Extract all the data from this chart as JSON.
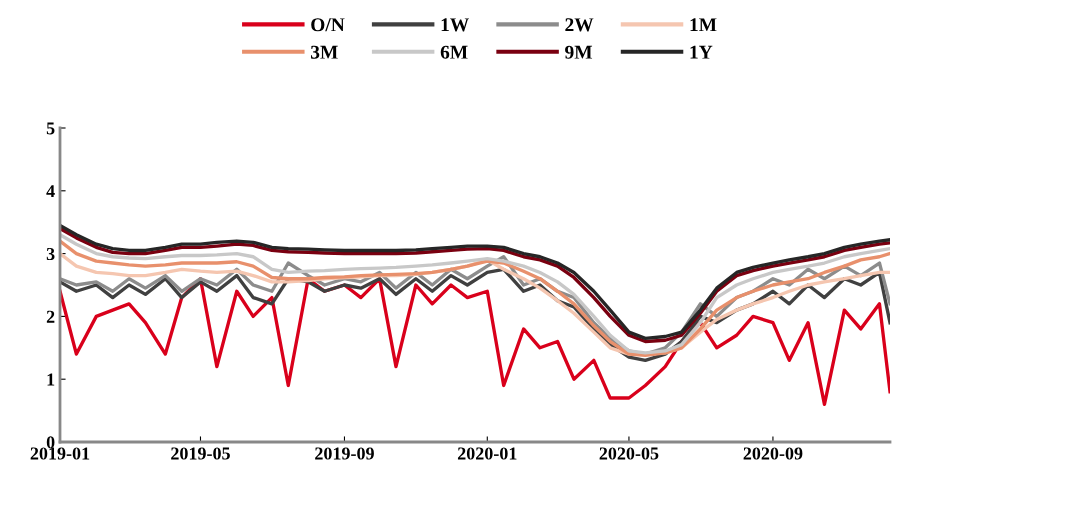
{
  "chart_data": {
    "type": "line",
    "legend": "top",
    "grid": false,
    "marker": "none",
    "line_style": "solid",
    "x": [
      "2019-01-01",
      "2019-01-15",
      "2019-02-01",
      "2019-02-15",
      "2019-03-01",
      "2019-03-15",
      "2019-04-01",
      "2019-04-15",
      "2019-05-01",
      "2019-05-15",
      "2019-06-01",
      "2019-06-15",
      "2019-07-01",
      "2019-07-15",
      "2019-08-01",
      "2019-08-15",
      "2019-09-01",
      "2019-09-15",
      "2019-10-01",
      "2019-10-15",
      "2019-11-01",
      "2019-11-15",
      "2019-12-01",
      "2019-12-15",
      "2020-01-01",
      "2020-01-15",
      "2020-02-01",
      "2020-02-15",
      "2020-03-01",
      "2020-03-15",
      "2020-04-01",
      "2020-04-15",
      "2020-05-01",
      "2020-05-15",
      "2020-06-01",
      "2020-06-15",
      "2020-07-01",
      "2020-07-15",
      "2020-08-01",
      "2020-08-15",
      "2020-09-01",
      "2020-09-15",
      "2020-10-01",
      "2020-10-15",
      "2020-11-01",
      "2020-11-15",
      "2020-12-01",
      "2020-12-10"
    ],
    "xlim": [
      "2019-01-01",
      "2020-12-10"
    ],
    "xticks": [
      {
        "value": "2019-01-01",
        "label": "2019-01"
      },
      {
        "value": "2019-05-01",
        "label": "2019-05"
      },
      {
        "value": "2019-09-01",
        "label": "2019-09"
      },
      {
        "value": "2020-01-01",
        "label": "2020-01"
      },
      {
        "value": "2020-05-01",
        "label": "2020-05"
      },
      {
        "value": "2020-09-01",
        "label": "2020-09"
      }
    ],
    "ylim": [
      0,
      5
    ],
    "yticks": [
      0,
      1,
      2,
      3,
      4,
      5
    ],
    "series": [
      {
        "name": "O/N",
        "color": "#d9001b",
        "values": [
          2.4,
          1.4,
          2.0,
          2.1,
          2.2,
          1.9,
          1.4,
          2.3,
          2.6,
          1.2,
          2.4,
          2.0,
          2.3,
          0.9,
          2.6,
          2.4,
          2.5,
          2.3,
          2.6,
          1.2,
          2.5,
          2.2,
          2.5,
          2.3,
          2.4,
          0.9,
          1.8,
          1.5,
          1.6,
          1.0,
          1.3,
          0.7,
          0.7,
          0.9,
          1.2,
          1.6,
          1.9,
          1.5,
          1.7,
          2.0,
          1.9,
          1.3,
          1.9,
          0.6,
          2.1,
          1.8,
          2.2,
          0.8
        ]
      },
      {
        "name": "1W",
        "color": "#404040",
        "values": [
          2.55,
          2.4,
          2.5,
          2.3,
          2.5,
          2.35,
          2.6,
          2.3,
          2.55,
          2.4,
          2.65,
          2.3,
          2.2,
          2.6,
          2.55,
          2.4,
          2.5,
          2.45,
          2.6,
          2.35,
          2.6,
          2.4,
          2.65,
          2.5,
          2.7,
          2.75,
          2.4,
          2.5,
          2.25,
          2.15,
          1.8,
          1.55,
          1.35,
          1.3,
          1.4,
          1.6,
          2.0,
          1.9,
          2.1,
          2.2,
          2.4,
          2.2,
          2.5,
          2.3,
          2.6,
          2.5,
          2.7,
          1.9
        ]
      },
      {
        "name": "2W",
        "color": "#8c8c8c",
        "values": [
          2.6,
          2.5,
          2.55,
          2.4,
          2.6,
          2.45,
          2.65,
          2.4,
          2.6,
          2.5,
          2.75,
          2.5,
          2.4,
          2.85,
          2.65,
          2.5,
          2.6,
          2.55,
          2.7,
          2.45,
          2.7,
          2.5,
          2.75,
          2.6,
          2.8,
          2.95,
          2.5,
          2.6,
          2.4,
          2.3,
          1.9,
          1.65,
          1.45,
          1.4,
          1.5,
          1.75,
          2.2,
          2.0,
          2.3,
          2.4,
          2.6,
          2.5,
          2.75,
          2.6,
          2.8,
          2.65,
          2.85,
          2.2
        ]
      },
      {
        "name": "1M",
        "color": "#f5c6b0",
        "values": [
          3.0,
          2.8,
          2.7,
          2.68,
          2.65,
          2.65,
          2.7,
          2.75,
          2.72,
          2.7,
          2.72,
          2.65,
          2.55,
          2.55,
          2.57,
          2.6,
          2.62,
          2.63,
          2.65,
          2.65,
          2.67,
          2.7,
          2.75,
          2.8,
          2.9,
          2.75,
          2.6,
          2.45,
          2.25,
          2.05,
          1.75,
          1.5,
          1.4,
          1.4,
          1.42,
          1.5,
          1.75,
          1.95,
          2.1,
          2.2,
          2.3,
          2.4,
          2.5,
          2.55,
          2.6,
          2.65,
          2.7,
          2.7
        ]
      },
      {
        "name": "3M",
        "color": "#e8906c",
        "values": [
          3.2,
          3.0,
          2.88,
          2.85,
          2.82,
          2.8,
          2.82,
          2.85,
          2.85,
          2.85,
          2.87,
          2.8,
          2.62,
          2.6,
          2.6,
          2.62,
          2.63,
          2.65,
          2.66,
          2.67,
          2.68,
          2.7,
          2.75,
          2.8,
          2.88,
          2.85,
          2.72,
          2.6,
          2.4,
          2.2,
          1.85,
          1.6,
          1.4,
          1.38,
          1.42,
          1.5,
          1.8,
          2.1,
          2.3,
          2.4,
          2.5,
          2.55,
          2.6,
          2.7,
          2.8,
          2.9,
          2.95,
          3.0
        ]
      },
      {
        "name": "6M",
        "color": "#c8c8c8",
        "values": [
          3.3,
          3.15,
          3.0,
          2.95,
          2.93,
          2.92,
          2.95,
          2.97,
          2.97,
          2.98,
          3.0,
          2.95,
          2.75,
          2.7,
          2.72,
          2.73,
          2.75,
          2.76,
          2.77,
          2.78,
          2.8,
          2.82,
          2.85,
          2.88,
          2.92,
          2.88,
          2.8,
          2.7,
          2.55,
          2.35,
          2.0,
          1.7,
          1.45,
          1.42,
          1.45,
          1.55,
          1.9,
          2.3,
          2.5,
          2.6,
          2.7,
          2.75,
          2.8,
          2.85,
          2.95,
          3.0,
          3.05,
          3.08
        ]
      },
      {
        "name": "9M",
        "color": "#7a0010",
        "values": [
          3.4,
          3.25,
          3.1,
          3.02,
          3.0,
          3.0,
          3.05,
          3.1,
          3.1,
          3.12,
          3.15,
          3.13,
          3.05,
          3.03,
          3.02,
          3.01,
          3.0,
          3.0,
          3.0,
          3.0,
          3.01,
          3.03,
          3.05,
          3.07,
          3.08,
          3.05,
          2.95,
          2.9,
          2.8,
          2.62,
          2.3,
          2.0,
          1.7,
          1.6,
          1.62,
          1.7,
          2.05,
          2.4,
          2.65,
          2.73,
          2.8,
          2.85,
          2.9,
          2.95,
          3.05,
          3.1,
          3.15,
          3.17
        ]
      },
      {
        "name": "1Y",
        "color": "#262626",
        "values": [
          3.45,
          3.3,
          3.15,
          3.08,
          3.05,
          3.05,
          3.1,
          3.15,
          3.15,
          3.18,
          3.2,
          3.18,
          3.1,
          3.08,
          3.07,
          3.06,
          3.05,
          3.05,
          3.05,
          3.05,
          3.06,
          3.08,
          3.1,
          3.12,
          3.12,
          3.1,
          3.0,
          2.95,
          2.85,
          2.7,
          2.4,
          2.1,
          1.75,
          1.65,
          1.68,
          1.75,
          2.1,
          2.45,
          2.7,
          2.78,
          2.85,
          2.9,
          2.95,
          3.0,
          3.1,
          3.15,
          3.2,
          3.22
        ]
      }
    ]
  }
}
